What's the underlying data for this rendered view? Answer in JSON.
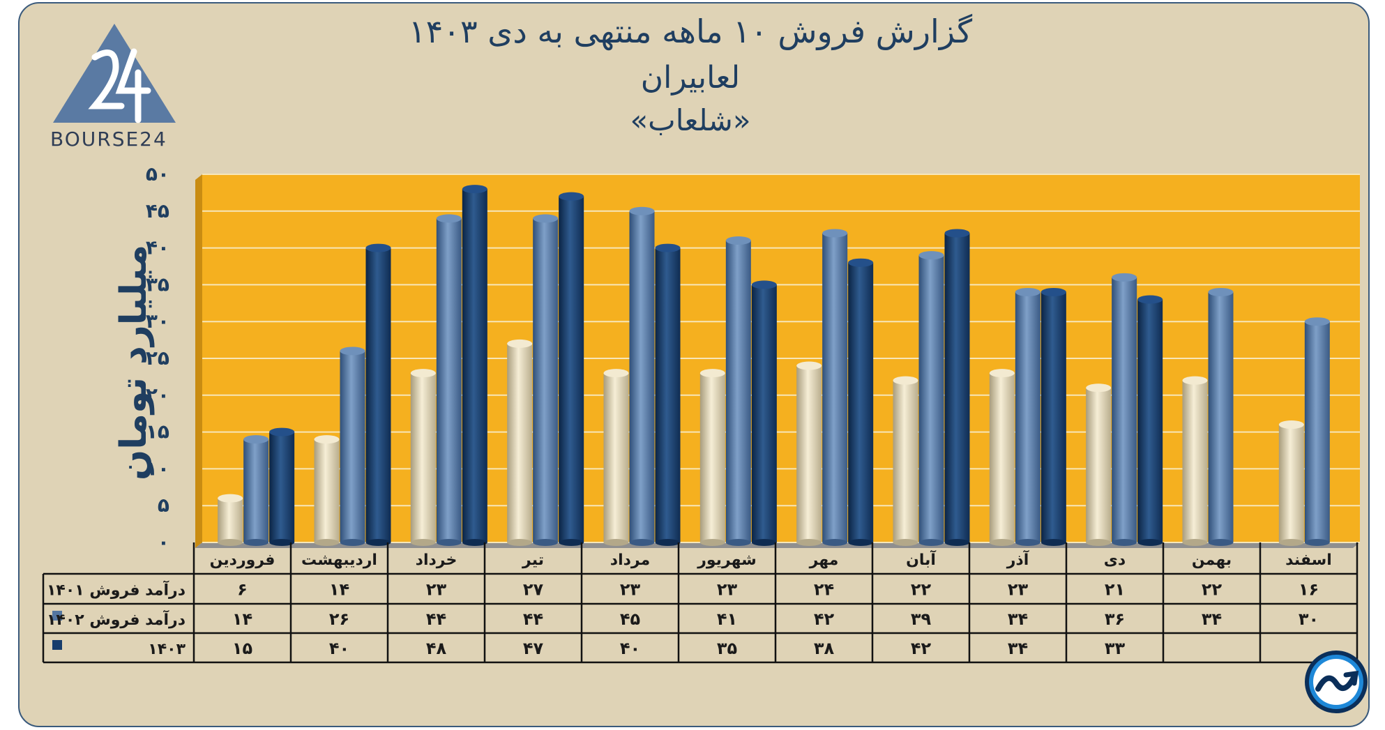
{
  "header": {
    "title_line1": "گزارش  فروش ۱۰ ماهه منتهی به دی ۱۴۰۳",
    "title_line2": "لعابیران",
    "title_line3": "«شلعاب»",
    "logo_text": "BOURSE24"
  },
  "colors": {
    "card_bg": "#dfd3b6",
    "plot_bg": "#f5b01f",
    "series_1401": "#e2d6b3",
    "series_1402": "#5476a0",
    "series_1403": "#173d6c",
    "text": "#1f3e60"
  },
  "chart_data": {
    "type": "bar",
    "title": "گزارش  فروش ۱۰ ماهه منتهی به دی ۱۴۰۳",
    "ylabel": "میلیارد تومان",
    "xlabel": "",
    "ylim": [
      0,
      50
    ],
    "yticks": [
      0,
      5,
      10,
      15,
      20,
      25,
      30,
      35,
      40,
      45,
      50
    ],
    "ytick_labels": [
      "۰",
      "۵",
      "۱۰",
      "۱۵",
      "۲۰",
      "۲۵",
      "۳۰",
      "۳۵",
      "۴۰",
      "۴۵",
      "۵۰"
    ],
    "categories": [
      "فروردین",
      "اردیبهشت",
      "خرداد",
      "تیر",
      "مرداد",
      "شهریور",
      "مهر",
      "آبان",
      "آذر",
      "دی",
      "بهمن",
      "اسفند"
    ],
    "series": [
      {
        "name": "درآمد فروش  ۱۴۰۱",
        "color": "#e2d6b3",
        "values": [
          6,
          14,
          23,
          27,
          23,
          23,
          24,
          22,
          23,
          21,
          22,
          16
        ],
        "labels": [
          "۶",
          "۱۴",
          "۲۳",
          "۲۷",
          "۲۳",
          "۲۳",
          "۲۴",
          "۲۲",
          "۲۳",
          "۲۱",
          "۲۲",
          "۱۶"
        ]
      },
      {
        "name": "درآمد فروش  ۱۴۰۲",
        "color": "#5476a0",
        "values": [
          14,
          26,
          44,
          44,
          45,
          41,
          42,
          39,
          34,
          36,
          34,
          30
        ],
        "labels": [
          "۱۴",
          "۲۶",
          "۴۴",
          "۴۴",
          "۴۵",
          "۴۱",
          "۴۲",
          "۳۹",
          "۳۴",
          "۳۶",
          "۳۴",
          "۳۰"
        ]
      },
      {
        "name": "۱۴۰۳",
        "color": "#173d6c",
        "values": [
          15,
          40,
          48,
          47,
          40,
          35,
          38,
          42,
          34,
          33,
          null,
          null
        ],
        "labels": [
          "۱۵",
          "۴۰",
          "۴۸",
          "۴۷",
          "۴۰",
          "۳۵",
          "۳۸",
          "۴۲",
          "۳۴",
          "۳۳",
          "",
          ""
        ]
      }
    ]
  }
}
